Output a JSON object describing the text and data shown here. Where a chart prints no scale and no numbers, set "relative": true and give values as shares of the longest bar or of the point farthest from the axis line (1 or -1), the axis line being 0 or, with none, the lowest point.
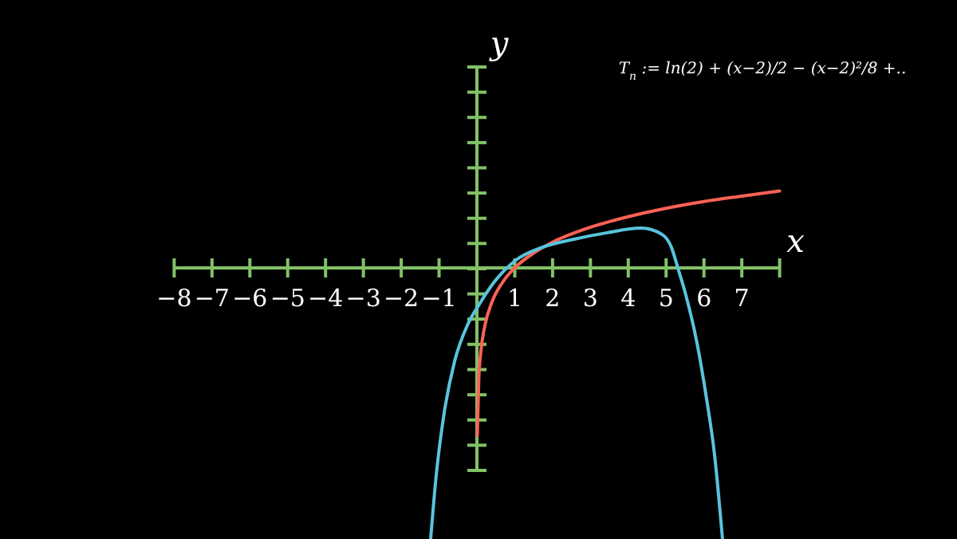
{
  "chart_data": {
    "type": "line",
    "relative": true,
    "xlabel": "x",
    "ylabel": "y",
    "annotations": [
      "T$_{n}$ := ln(2) + (x−2)/2 − (x−2)²/8 +.."
    ],
    "ref_lines": [
      {
        "axis": "x",
        "value": 0,
        "color": "#83c167"
      }
    ],
    "xlim": [
      -8,
      8
    ],
    "xticks": [
      -8,
      -7,
      -6,
      -5,
      -4,
      -3,
      -2,
      -1,
      1,
      2,
      3,
      4,
      5,
      6,
      7,
      {
        "value": 8,
        "label": null
      }
    ],
    "series": [
      {
        "color": "#fc6255",
        "x": [
          0.011,
          0.05,
          0.1,
          0.2,
          0.4,
          0.7,
          1,
          1.5,
          2,
          3,
          4,
          5,
          6,
          7,
          8
        ],
        "values": [
          -0.618,
          -0.409,
          -0.314,
          -0.22,
          -0.125,
          -0.049,
          0,
          0.055,
          0.095,
          0.15,
          0.189,
          0.22,
          0.245,
          0.265,
          0.284
        ]
      },
      {
        "color": "#58c4dd",
        "x": [
          -1.222,
          -1.083,
          -0.872,
          -0.59,
          -0.24,
          0.042,
          0.464,
          1.024,
          1.728,
          2.571,
          3.413,
          4.341,
          4.889,
          5.141,
          5.31,
          5.521,
          5.815,
          6.068,
          6.279,
          6.49
        ],
        "values": [
          -1,
          -0.776,
          -0.541,
          -0.345,
          -0.208,
          -0.139,
          -0.051,
          0.028,
          0.076,
          0.106,
          0.129,
          0.147,
          0.124,
          0.076,
          0,
          -0.1,
          -0.276,
          -0.482,
          -0.688,
          -1
        ]
      }
    ]
  }
}
